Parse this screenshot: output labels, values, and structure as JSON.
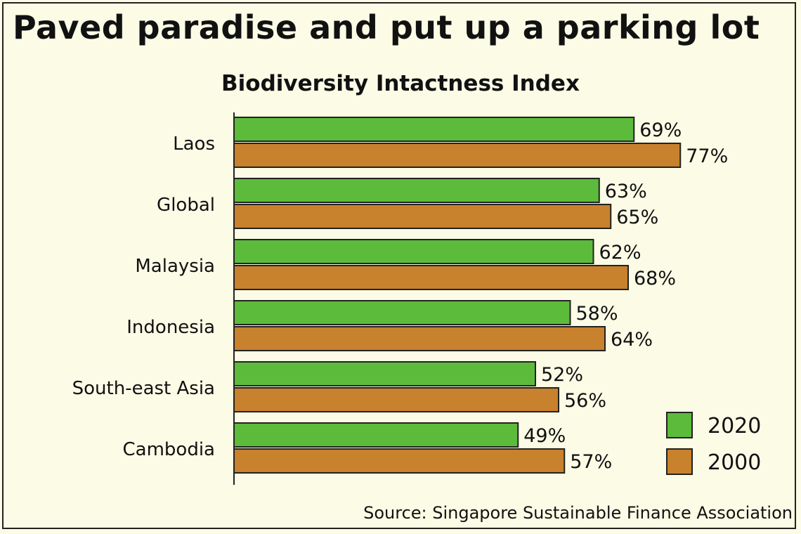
{
  "title": "Paved paradise and put up a parking lot",
  "source": "Source: Singapore Sustainable Finance Association",
  "colors": {
    "2020": "#5dbb3b",
    "2000": "#c8812c",
    "background": "#fbfbe6"
  },
  "chart_data": {
    "type": "bar",
    "orientation": "horizontal",
    "title": "Biodiversity Intactness Index",
    "categories": [
      "Laos",
      "Global",
      "Malaysia",
      "Indonesia",
      "South-east Asia",
      "Cambodia"
    ],
    "series": [
      {
        "name": "2020",
        "values": [
          69,
          63,
          62,
          58,
          52,
          49
        ],
        "labels": [
          "69%",
          "63%",
          "62%",
          "58%",
          "52%",
          "49%"
        ]
      },
      {
        "name": "2000",
        "values": [
          77,
          65,
          68,
          64,
          56,
          57
        ],
        "labels": [
          "77%",
          "65%",
          "68%",
          "64%",
          "56%",
          "57%"
        ]
      }
    ],
    "unit": "%",
    "legend": "bottom-right",
    "grid": false
  }
}
